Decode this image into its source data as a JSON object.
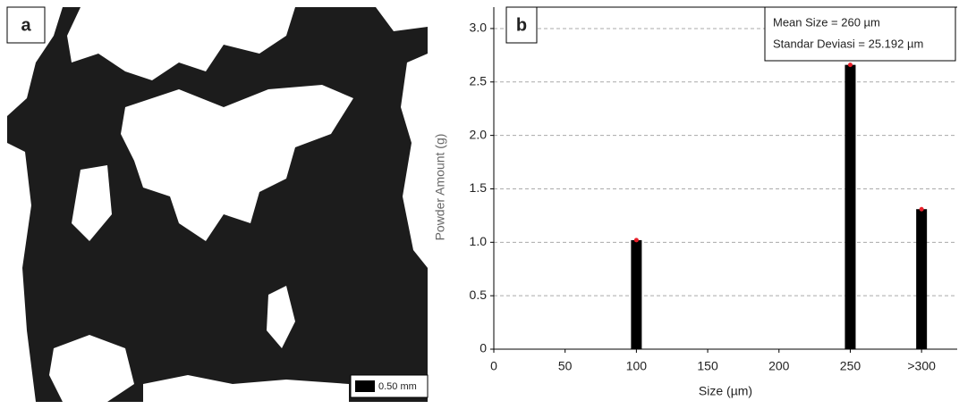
{
  "panel_a": {
    "label": "a",
    "scale_bar": "0.50 mm"
  },
  "chart_data": {
    "type": "bar",
    "label": "b",
    "annotations": [
      "Mean Size = 260 µm",
      "Standar Deviasi = 25.192 µm"
    ],
    "x_label": "Size (µm)",
    "y_label": "Powder Amount (g)",
    "x": [
      100,
      250,
      300
    ],
    "values": [
      1.02,
      2.66,
      1.31
    ],
    "color": "#000000",
    "marker_color": "#e8202a",
    "xlim": [
      0,
      325
    ],
    "xticks": [
      0,
      50,
      100,
      150,
      200,
      250,
      {
        "value": 300,
        "label": ">300"
      }
    ],
    "ylim": [
      0,
      3.2
    ],
    "yticks": [
      0,
      0.5,
      {
        "value": 1,
        "label": "1.0"
      },
      1.5,
      {
        "value": 2,
        "label": "2.0"
      },
      2.5,
      {
        "value": 3,
        "label": "3.0"
      }
    ],
    "grid": true
  }
}
